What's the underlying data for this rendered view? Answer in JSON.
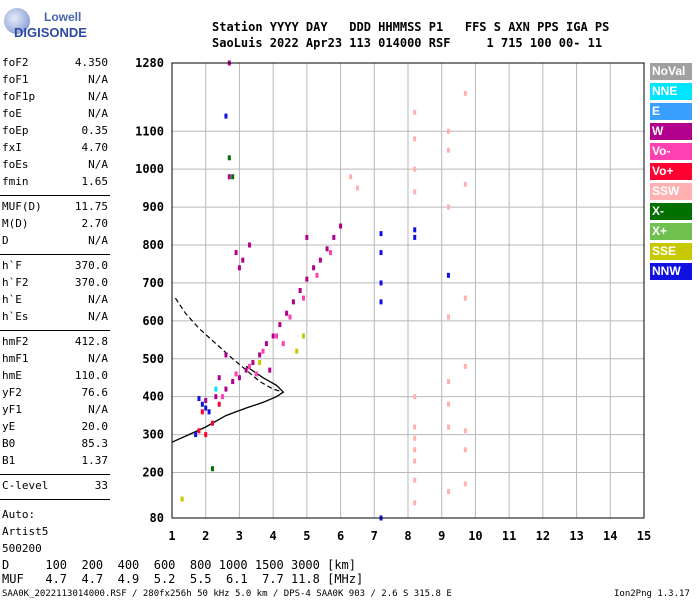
{
  "logo": {
    "line1": "Lowell",
    "line2": "DIGISONDE"
  },
  "header": {
    "line1": "Station YYYY DAY   DDD HHMMSS P1   FFS S AXN PPS IGA PS",
    "line2": "SaoLuis 2022 Apr23 113 014000 RSF     1 715 100 00- 11"
  },
  "params": {
    "group1": [
      {
        "k": "foF2",
        "v": "4.350"
      },
      {
        "k": "foF1",
        "v": "N/A"
      },
      {
        "k": "foF1p",
        "v": "N/A"
      },
      {
        "k": "foE",
        "v": "N/A"
      },
      {
        "k": "foEp",
        "v": "0.35"
      },
      {
        "k": "fxI",
        "v": "4.70"
      },
      {
        "k": "foEs",
        "v": "N/A"
      },
      {
        "k": "fmin",
        "v": "1.65"
      }
    ],
    "group2": [
      {
        "k": "MUF(D)",
        "v": "11.75"
      },
      {
        "k": "M(D)",
        "v": "2.70"
      },
      {
        "k": "D",
        "v": "N/A"
      }
    ],
    "group3": [
      {
        "k": "h`F",
        "v": "370.0"
      },
      {
        "k": "h`F2",
        "v": "370.0"
      },
      {
        "k": "h`E",
        "v": "N/A"
      },
      {
        "k": "h`Es",
        "v": "N/A"
      }
    ],
    "group4": [
      {
        "k": "hmF2",
        "v": "412.8"
      },
      {
        "k": "hmF1",
        "v": "N/A"
      },
      {
        "k": "hmE",
        "v": "110.0"
      },
      {
        "k": "yF2",
        "v": "76.6"
      },
      {
        "k": "yF1",
        "v": "N/A"
      },
      {
        "k": "yE",
        "v": "20.0"
      },
      {
        "k": "B0",
        "v": "85.3"
      },
      {
        "k": "B1",
        "v": "1.37"
      }
    ],
    "group5": [
      {
        "k": "C-level",
        "v": "33"
      }
    ],
    "extra": [
      "Auto:",
      "Artist5",
      "500200"
    ]
  },
  "legend": [
    {
      "label": "NoVal",
      "color": "#a0a0a0"
    },
    {
      "label": "NNE",
      "color": "#00e5ff"
    },
    {
      "label": "E",
      "color": "#3aa0ff"
    },
    {
      "label": "W",
      "color": "#b0008c"
    },
    {
      "label": "Vo-",
      "color": "#ff40b0"
    },
    {
      "label": "Vo+",
      "color": "#ff0030"
    },
    {
      "label": "SSW",
      "color": "#ffb0b0"
    },
    {
      "label": "X-",
      "color": "#007000"
    },
    {
      "label": "X+",
      "color": "#70c050"
    },
    {
      "label": "SSE",
      "color": "#c8c800"
    },
    {
      "label": "NNW",
      "color": "#1010e0"
    }
  ],
  "footer": {
    "d_row": "D     100  200  400  600  800 1000 1500 3000 [km]",
    "muf_row": "MUF   4.7  4.7  4.9  5.2  5.5  6.1  7.7 11.8 [MHz]",
    "info": "SAA0K_2022113014000.RSF / 280fx256h 50 kHz 5.0 km / DPS-4 SAA0K 903 / 2.6 S 315.8 E",
    "version": "Ion2Png 1.3.17"
  },
  "chart_data": {
    "type": "scatter",
    "x_ticks": [
      1,
      2,
      3,
      4,
      5,
      6,
      7,
      8,
      9,
      10,
      11,
      12,
      13,
      14,
      15
    ],
    "y_ticks": [
      80,
      200,
      300,
      400,
      500,
      600,
      700,
      800,
      900,
      1000,
      1100,
      1280
    ],
    "xlim": [
      1,
      15
    ],
    "ylim": [
      80,
      1280
    ],
    "grid": true,
    "series": [
      {
        "color": "#b0008c",
        "points": [
          [
            2.0,
            390
          ],
          [
            2.3,
            400
          ],
          [
            2.6,
            420
          ],
          [
            2.8,
            440
          ],
          [
            3.0,
            450
          ],
          [
            3.2,
            470
          ],
          [
            3.4,
            490
          ],
          [
            3.6,
            510
          ],
          [
            3.8,
            540
          ],
          [
            4.0,
            560
          ],
          [
            4.2,
            590
          ],
          [
            4.4,
            620
          ],
          [
            4.6,
            650
          ],
          [
            4.8,
            680
          ],
          [
            5.0,
            710
          ],
          [
            5.2,
            740
          ],
          [
            5.4,
            760
          ],
          [
            5.6,
            790
          ],
          [
            5.8,
            820
          ],
          [
            6.0,
            850
          ],
          [
            2.9,
            780
          ],
          [
            3.0,
            740
          ],
          [
            3.1,
            760
          ],
          [
            2.7,
            1280
          ],
          [
            2.7,
            980
          ],
          [
            3.3,
            800
          ],
          [
            5.0,
            820
          ],
          [
            2.6,
            510
          ],
          [
            2.4,
            450
          ],
          [
            3.9,
            470
          ]
        ]
      },
      {
        "color": "#ff40b0",
        "points": [
          [
            2.5,
            400
          ],
          [
            2.9,
            460
          ],
          [
            3.3,
            480
          ],
          [
            3.7,
            520
          ],
          [
            4.1,
            560
          ],
          [
            4.5,
            610
          ],
          [
            4.9,
            660
          ],
          [
            5.3,
            720
          ],
          [
            5.7,
            780
          ],
          [
            3.5,
            460
          ],
          [
            4.3,
            540
          ]
        ]
      },
      {
        "color": "#ff0030",
        "points": [
          [
            1.8,
            310
          ],
          [
            2.0,
            300
          ],
          [
            2.2,
            330
          ],
          [
            1.9,
            360
          ],
          [
            2.4,
            380
          ]
        ]
      },
      {
        "color": "#1010e0",
        "points": [
          [
            1.8,
            395
          ],
          [
            1.9,
            380
          ],
          [
            2.0,
            370
          ],
          [
            1.7,
            300
          ],
          [
            2.1,
            360
          ],
          [
            7.2,
            830
          ],
          [
            7.2,
            780
          ],
          [
            7.2,
            700
          ],
          [
            7.2,
            650
          ],
          [
            8.2,
            840
          ],
          [
            8.2,
            820
          ],
          [
            9.2,
            720
          ],
          [
            7.2,
            80
          ],
          [
            2.6,
            1140
          ]
        ]
      },
      {
        "color": "#ffb0b0",
        "points": [
          [
            6.3,
            980
          ],
          [
            6.5,
            950
          ],
          [
            8.2,
            1150
          ],
          [
            8.2,
            1080
          ],
          [
            8.2,
            1000
          ],
          [
            8.2,
            940
          ],
          [
            8.2,
            400
          ],
          [
            8.2,
            320
          ],
          [
            8.2,
            290
          ],
          [
            8.2,
            260
          ],
          [
            8.2,
            230
          ],
          [
            8.2,
            180
          ],
          [
            8.2,
            120
          ],
          [
            9.2,
            1100
          ],
          [
            9.2,
            1050
          ],
          [
            9.2,
            900
          ],
          [
            9.2,
            610
          ],
          [
            9.2,
            440
          ],
          [
            9.2,
            380
          ],
          [
            9.2,
            320
          ],
          [
            9.2,
            150
          ],
          [
            9.7,
            1200
          ],
          [
            9.7,
            960
          ],
          [
            9.7,
            660
          ],
          [
            9.7,
            480
          ],
          [
            9.7,
            310
          ],
          [
            9.7,
            260
          ],
          [
            9.7,
            170
          ]
        ]
      },
      {
        "color": "#007000",
        "points": [
          [
            2.7,
            1030
          ],
          [
            2.8,
            980
          ],
          [
            2.2,
            210
          ]
        ]
      },
      {
        "color": "#c8c800",
        "points": [
          [
            1.3,
            130
          ],
          [
            4.7,
            520
          ],
          [
            4.9,
            560
          ],
          [
            3.6,
            490
          ]
        ]
      },
      {
        "color": "#00e5ff",
        "points": [
          [
            2.3,
            420
          ]
        ]
      }
    ],
    "profile_solid": [
      [
        1.0,
        280
      ],
      [
        1.5,
        300
      ],
      [
        2.0,
        320
      ],
      [
        2.6,
        350
      ],
      [
        3.2,
        370
      ],
      [
        3.7,
        385
      ],
      [
        4.1,
        400
      ],
      [
        4.3,
        412
      ],
      [
        4.1,
        430
      ],
      [
        3.7,
        450
      ],
      [
        3.2,
        480
      ]
    ],
    "profile_dashed": [
      [
        1.1,
        660
      ],
      [
        1.4,
        620
      ],
      [
        1.8,
        580
      ],
      [
        2.3,
        540
      ],
      [
        2.8,
        500
      ],
      [
        3.2,
        470
      ],
      [
        3.6,
        440
      ],
      [
        4.0,
        420
      ],
      [
        4.3,
        412
      ]
    ]
  }
}
